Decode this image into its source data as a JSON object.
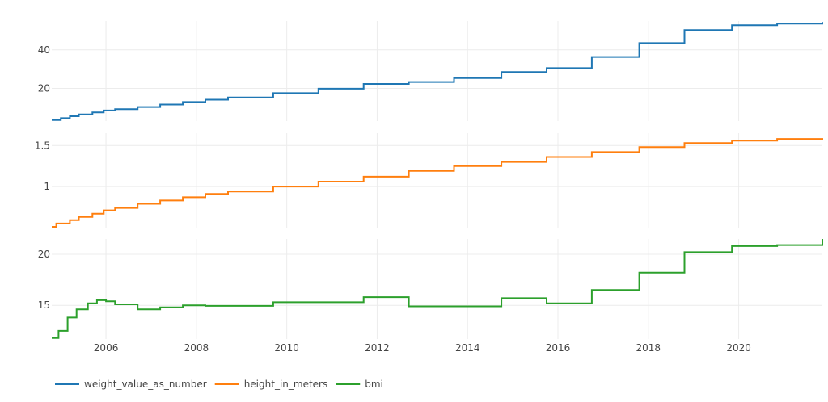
{
  "chart_data": {
    "type": "line",
    "line_shape": "step",
    "grid": true,
    "legend_position": "bottom-left",
    "x_range": [
      2004.8,
      2021.85
    ],
    "x_ticks": [
      {
        "value": 2006,
        "label": "2006"
      },
      {
        "value": 2008,
        "label": "2008"
      },
      {
        "value": 2010,
        "label": "2010"
      },
      {
        "value": 2012,
        "label": "2012"
      },
      {
        "value": 2014,
        "label": "2014"
      },
      {
        "value": 2016,
        "label": "2016"
      },
      {
        "value": 2018,
        "label": "2018"
      },
      {
        "value": 2020,
        "label": "2020"
      }
    ],
    "panels": [
      {
        "series": "weight_value_as_number",
        "color": "#1f77b4",
        "ylim": [
          3,
          55
        ],
        "y_ticks": [
          {
            "value": 20,
            "label": "20"
          },
          {
            "value": 40,
            "label": "40"
          }
        ],
        "x": [
          2004.8,
          2005.0,
          2005.2,
          2005.4,
          2005.7,
          2005.95,
          2006.2,
          2006.7,
          2007.2,
          2007.7,
          2008.2,
          2008.7,
          2009.7,
          2010.7,
          2011.7,
          2012.7,
          2013.7,
          2014.75,
          2015.75,
          2016.75,
          2017.8,
          2018.8,
          2019.85,
          2020.85,
          2021.85
        ],
        "y": [
          3.5,
          4.5,
          5.5,
          6.5,
          7.5,
          8.5,
          9.2,
          10.3,
          11.6,
          12.9,
          14.1,
          15.3,
          17.5,
          19.8,
          22.3,
          23.3,
          25.3,
          28.5,
          30.5,
          36.3,
          43.5,
          50.3,
          52.8,
          53.6,
          54.5
        ]
      },
      {
        "series": "height_in_meters",
        "color": "#ff7f0e",
        "ylim": [
          0.5,
          1.65
        ],
        "y_ticks": [
          {
            "value": 1,
            "label": "1"
          },
          {
            "value": 1.5,
            "label": "1.5"
          }
        ],
        "x": [
          2004.8,
          2004.9,
          2005.2,
          2005.4,
          2005.7,
          2005.95,
          2006.2,
          2006.7,
          2007.2,
          2007.7,
          2008.2,
          2008.7,
          2009.7,
          2010.7,
          2011.7,
          2012.7,
          2013.7,
          2014.75,
          2015.75,
          2016.75,
          2017.8,
          2018.8,
          2019.85,
          2020.85,
          2021.85
        ],
        "y": [
          0.51,
          0.55,
          0.59,
          0.63,
          0.67,
          0.71,
          0.74,
          0.79,
          0.83,
          0.87,
          0.91,
          0.94,
          1.0,
          1.06,
          1.12,
          1.19,
          1.25,
          1.3,
          1.36,
          1.42,
          1.48,
          1.53,
          1.56,
          1.58,
          1.59
        ]
      },
      {
        "series": "bmi",
        "color": "#2ca02c",
        "ylim": [
          11.7,
          21.5
        ],
        "y_ticks": [
          {
            "value": 15,
            "label": "15"
          },
          {
            "value": 20,
            "label": "20"
          }
        ],
        "x": [
          2004.8,
          2004.95,
          2005.15,
          2005.35,
          2005.6,
          2005.8,
          2006.0,
          2006.2,
          2006.7,
          2007.2,
          2007.7,
          2008.2,
          2009.7,
          2011.7,
          2012.7,
          2014.75,
          2015.75,
          2016.75,
          2017.8,
          2018.8,
          2019.85,
          2020.85,
          2021.85
        ],
        "y": [
          11.8,
          12.5,
          13.8,
          14.6,
          15.2,
          15.5,
          15.4,
          15.1,
          14.6,
          14.8,
          15.0,
          14.95,
          15.3,
          15.8,
          14.9,
          15.7,
          15.2,
          16.5,
          18.2,
          20.2,
          20.8,
          20.9,
          21.5
        ]
      }
    ],
    "legend": [
      {
        "label": "weight_value_as_number",
        "color": "#1f77b4"
      },
      {
        "label": "height_in_meters",
        "color": "#ff7f0e"
      },
      {
        "label": "bmi",
        "color": "#2ca02c"
      }
    ]
  }
}
